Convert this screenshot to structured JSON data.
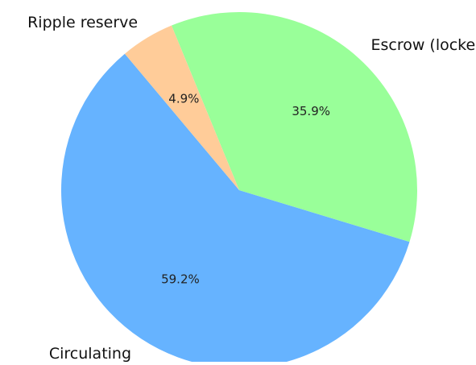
{
  "chart_data": {
    "type": "pie",
    "title": "",
    "slices": [
      {
        "label": "Circulating",
        "value": 59.2,
        "pct_label": "59.2%",
        "color": "#66b3ff"
      },
      {
        "label": "Escrow (locked)",
        "value": 35.9,
        "pct_label": "35.9%",
        "color": "#99ff99"
      },
      {
        "label": "Ripple reserve",
        "value": 4.9,
        "pct_label": "4.9%",
        "color": "#ffcc99"
      }
    ],
    "start_angle_deg": 130,
    "direction": "counterclockwise",
    "legend": "none"
  }
}
